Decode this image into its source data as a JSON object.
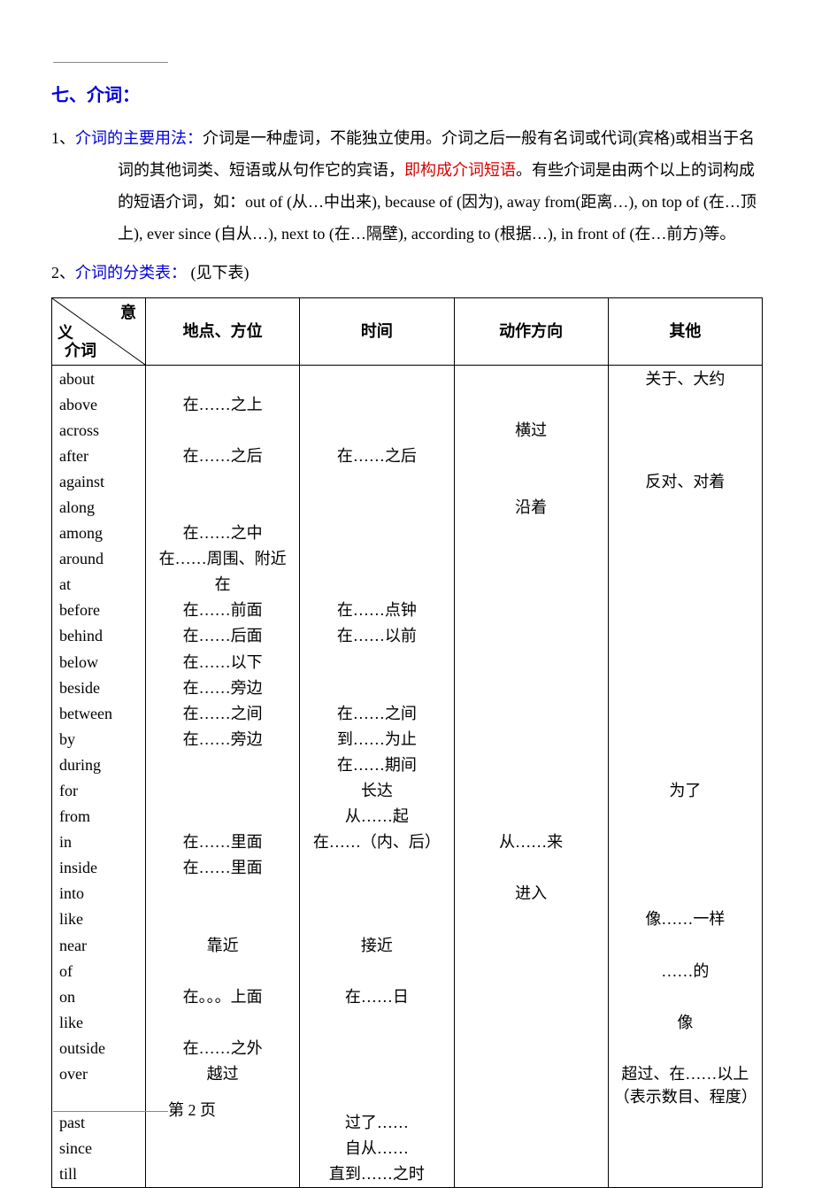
{
  "section_title": "七、介词：",
  "p1": {
    "num": "1、",
    "blue": "介词的主要用法：",
    "t1": "介词是一种虚词，不能独立使用。介词之后一般有名词或代词(宾格)或相当于名词的其他词类、短语或从句作它的宾语，",
    "red": "即构成介词短语",
    "t2": "。有些介词是由两个以上的词构成的短语介词，如：out of (从…中出来), because of (因为), away from(距离…), on top of (在…顶上), ever since (自从…), next to (在…隔壁), according to (根据…), in front of (在…前方)等。"
  },
  "p2": {
    "num": "2、",
    "blue": "介词的分类表：",
    "tail": "  (见下表)"
  },
  "table": {
    "diag": {
      "top": "意",
      "mid": "义",
      "bot": "介词"
    },
    "headers": [
      "地点、方位",
      "时间",
      "动作方向",
      "其他"
    ],
    "rows": [
      [
        "about",
        "",
        "",
        "",
        "关于、大约"
      ],
      [
        "above",
        "在……之上",
        "",
        "",
        ""
      ],
      [
        "across",
        "",
        "",
        "横过",
        ""
      ],
      [
        "after",
        "在……之后",
        "在……之后",
        "",
        ""
      ],
      [
        "against",
        "",
        "",
        "",
        "反对、对着"
      ],
      [
        "along",
        "",
        "",
        "沿着",
        ""
      ],
      [
        "among",
        "在……之中",
        "",
        "",
        ""
      ],
      [
        "around",
        "在……周围、附近",
        "",
        "",
        ""
      ],
      [
        "at",
        "在",
        "",
        "",
        ""
      ],
      [
        "before",
        "在……前面",
        "在……点钟",
        "",
        ""
      ],
      [
        "behind",
        "在……后面",
        "在……以前",
        "",
        ""
      ],
      [
        "below",
        "在……以下",
        "",
        "",
        ""
      ],
      [
        "beside",
        "在……旁边",
        "",
        "",
        ""
      ],
      [
        "between",
        "在……之间",
        "在……之间",
        "",
        ""
      ],
      [
        "by",
        "在……旁边",
        "到……为止",
        "",
        ""
      ],
      [
        "during",
        "",
        "在……期间",
        "",
        ""
      ],
      [
        "for",
        "",
        "长达",
        "",
        "为了"
      ],
      [
        "from",
        "",
        "从……起",
        "",
        ""
      ],
      [
        "in",
        "在……里面",
        "在……（内、后）",
        "从……来",
        ""
      ],
      [
        "inside",
        "在……里面",
        "",
        "",
        ""
      ],
      [
        "into",
        "",
        "",
        "进入",
        ""
      ],
      [
        "like",
        "",
        "",
        "",
        "像……一样"
      ],
      [
        "near",
        "靠近",
        "接近",
        "",
        ""
      ],
      [
        "of",
        "",
        "",
        "",
        "……的"
      ],
      [
        "on",
        "在。。。上面",
        "在……日",
        "",
        ""
      ],
      [
        "like",
        "",
        "",
        "",
        "像"
      ],
      [
        "outside",
        "在……之外",
        "",
        "",
        ""
      ],
      [
        "over",
        "越过",
        "",
        "",
        "超过、在……以上（表示数目、程度）"
      ],
      [
        "past",
        "",
        "过了……",
        "",
        ""
      ],
      [
        "since",
        "",
        "自从……",
        "",
        ""
      ],
      [
        "till",
        "",
        "直到……之时",
        "",
        ""
      ]
    ]
  },
  "footer": "第 2 页"
}
